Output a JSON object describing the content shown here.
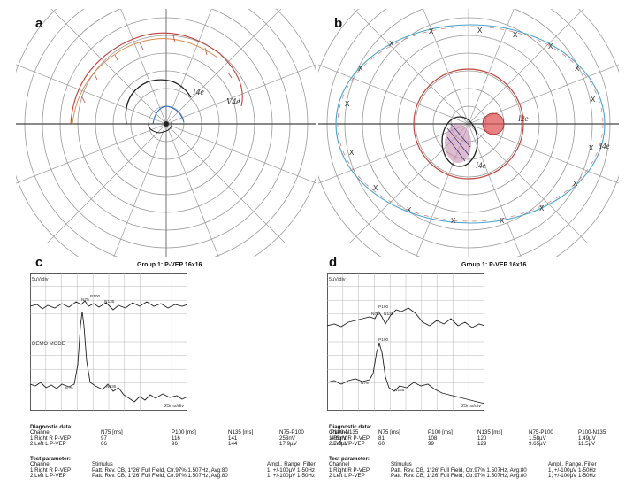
{
  "panels": {
    "a": {
      "label": "a",
      "annotations": [
        "I4e",
        "V4e"
      ]
    },
    "b": {
      "label": "b",
      "annotations": [
        "I2e",
        "I4e",
        "I4e"
      ]
    },
    "c": {
      "label": "c",
      "group_title": "Group 1: P-VEP 16x16",
      "y_scale": "5µV/div",
      "x_scale": "25ms/div",
      "demo_mode": "DEMO MODE",
      "peaks_top": [
        "N75",
        "P100",
        "N135"
      ],
      "peaks_bottom": [
        "N75",
        "N135"
      ],
      "diag_title": "Diagnostic data:",
      "diag_headers": [
        "Channel",
        "N75 [ms]",
        "P100 [ms]",
        "N135 [ms]",
        "N75-P100",
        "P100-N135"
      ],
      "diag_rows": [
        [
          "1 Right R P-VEP",
          "97",
          "116",
          "141",
          "253nV",
          "405nV"
        ],
        [
          "2 Left L P-VEP",
          "66",
          "96",
          "144",
          "17.9µV",
          "17.6µV"
        ]
      ],
      "test_title": "Test parameter:",
      "test_headers": [
        "Channel",
        "Stimulus",
        "Ampl., Range, Filter"
      ],
      "test_rows": [
        [
          "1 Right R P-VEP",
          "Patt. Rev. CB, 1°26' Full Field, Ctr.97% 1.507Hz, Avg:80",
          "1, +/-100µV 1-50Hz"
        ],
        [
          "2 Left L P-VEP",
          "Patt. Rev. CB, 1°26' Full Field, Ctr.97% 1.507Hz, Avg:80",
          "1, +/-100µV 1-50Hz"
        ]
      ]
    },
    "d": {
      "label": "d",
      "group_title": "Group 1: P-VEP 16x16",
      "y_scale": "5µV/div",
      "x_scale": "25ms/div",
      "peaks_top": [
        "N75",
        "P100",
        "N135"
      ],
      "peaks_bottom": [
        "P100",
        "N75",
        "N135"
      ],
      "diag_title": "Diagnostic data:",
      "diag_headers": [
        "Channel",
        "N75 [ms]",
        "P100 [ms]",
        "N135 [ms]",
        "N75-P100",
        "P100-N135"
      ],
      "diag_rows": [
        [
          "1 Right R P-VEP",
          "81",
          "108",
          "120",
          "1.58µV",
          "1.49µV"
        ],
        [
          "2 Left L P-VEP",
          "60",
          "99",
          "129",
          "9.65µV",
          "11.5µV"
        ]
      ],
      "test_title": "Test parameter:",
      "test_headers": [
        "Channel",
        "Stimulus",
        "Ampl., Range, Filter"
      ],
      "test_rows": [
        [
          "1 Right R P-VEP",
          "Patt. Rev. CB, 1°26' Full Field, Ctr.97% 1.507Hz, Avg:80",
          "1, +/-100µV 1-50Hz"
        ],
        [
          "2 Left L P-VEP",
          "Patt. Rev. CB, 1°26' Full Field, Ctr.97% 1.507Hz, Avg:80",
          "1, +/-100µV 1-50Hz"
        ]
      ]
    }
  }
}
